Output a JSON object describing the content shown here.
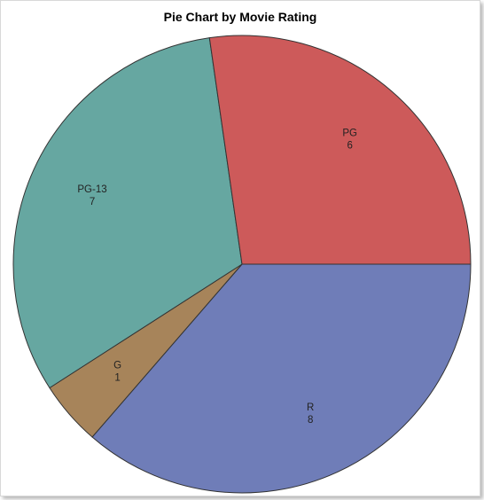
{
  "chart_data": {
    "type": "pie",
    "title": "Pie Chart by Movie Rating",
    "slices": [
      {
        "label": "R",
        "value": 8,
        "color": "#6f7db8",
        "label_color": "#1f2b6a"
      },
      {
        "label": "G",
        "value": 1,
        "color": "#a7845a",
        "label_color": "#3a2a10"
      },
      {
        "label": "PG-13",
        "value": 7,
        "color": "#66a7a1",
        "label_color": "#1e3e3a"
      },
      {
        "label": "PG",
        "value": 6,
        "color": "#cd5a5a",
        "label_color": "#5a1010"
      }
    ],
    "start_angle_deg": 0,
    "direction": "counterclockwise",
    "legend": "none"
  }
}
